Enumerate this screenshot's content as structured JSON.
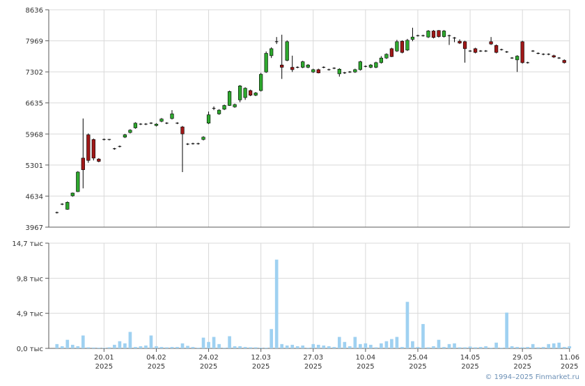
{
  "chart_data": [
    {
      "type": "candlestick",
      "y_ticks": [
        "8636",
        "7969",
        "7302",
        "6635",
        "5968",
        "5301",
        "4634",
        "3967"
      ],
      "ylim": [
        3967,
        8636
      ],
      "x_ticks": [
        {
          "date": "20.01",
          "year": "2025",
          "index": 9
        },
        {
          "date": "04.02",
          "year": "2025",
          "index": 19
        },
        {
          "date": "24.02",
          "year": "2025",
          "index": 29
        },
        {
          "date": "12.03",
          "year": "2025",
          "index": 39
        },
        {
          "date": "27.03",
          "year": "2025",
          "index": 49
        },
        {
          "date": "10.04",
          "year": "2025",
          "index": 59
        },
        {
          "date": "25.04",
          "year": "2025",
          "index": 69
        },
        {
          "date": "14.05",
          "year": "2025",
          "index": 79
        },
        {
          "date": "29.05",
          "year": "2025",
          "index": 89
        },
        {
          "date": "11.06",
          "year": "2025",
          "index": 98
        }
      ],
      "grid": true,
      "candles": [
        [
          4280,
          4280,
          4260,
          4300
        ],
        [
          4460,
          4460,
          4440,
          4480
        ],
        [
          4350,
          4500,
          4340,
          4520
        ],
        [
          4640,
          4700,
          4620,
          4710
        ],
        [
          4730,
          5150,
          4720,
          5170
        ],
        [
          5450,
          5200,
          4800,
          6300
        ],
        [
          5950,
          5400,
          5350,
          5980
        ],
        [
          5850,
          5450,
          5400,
          5870
        ],
        [
          5430,
          5380,
          5360,
          5450
        ],
        [
          5850,
          5850,
          5830,
          5870
        ],
        [
          5850,
          5850,
          5830,
          5860
        ],
        [
          5650,
          5650,
          5630,
          5670
        ],
        [
          5700,
          5700,
          5680,
          5720
        ],
        [
          5900,
          5950,
          5880,
          5970
        ],
        [
          6000,
          6050,
          5980,
          6070
        ],
        [
          6100,
          6200,
          6080,
          6220
        ],
        [
          6180,
          6180,
          6160,
          6200
        ],
        [
          6180,
          6180,
          6160,
          6200
        ],
        [
          6200,
          6200,
          6180,
          6220
        ],
        [
          6150,
          6180,
          6130,
          6200
        ],
        [
          6240,
          6290,
          6220,
          6310
        ],
        [
          6200,
          6200,
          6180,
          6220
        ],
        [
          6300,
          6400,
          6280,
          6480
        ],
        [
          6200,
          6200,
          6180,
          6220
        ],
        [
          6120,
          5970,
          5150,
          6140
        ],
        [
          5750,
          5750,
          5730,
          5770
        ],
        [
          5760,
          5760,
          5740,
          5780
        ],
        [
          5760,
          5760,
          5740,
          5780
        ],
        [
          5850,
          5900,
          5830,
          5920
        ],
        [
          6200,
          6380,
          6180,
          6450
        ],
        [
          6520,
          6520,
          6480,
          6560
        ],
        [
          6400,
          6480,
          6380,
          6500
        ],
        [
          6500,
          6580,
          6480,
          6600
        ],
        [
          6580,
          6880,
          6570,
          6900
        ],
        [
          6550,
          6600,
          6530,
          6620
        ],
        [
          6700,
          7000,
          6650,
          7020
        ],
        [
          6750,
          6950,
          6700,
          6970
        ],
        [
          6900,
          6800,
          6780,
          6920
        ],
        [
          6800,
          6850,
          6780,
          6870
        ],
        [
          6900,
          7250,
          6880,
          7280
        ],
        [
          7300,
          7700,
          7280,
          7740
        ],
        [
          7650,
          7800,
          7600,
          7830
        ],
        [
          7950,
          7950,
          7900,
          8050
        ],
        [
          7450,
          7400,
          7150,
          8100
        ],
        [
          7550,
          7950,
          7530,
          7980
        ],
        [
          7400,
          7350,
          7300,
          7650
        ],
        [
          7400,
          7400,
          7380,
          7420
        ],
        [
          7400,
          7520,
          7380,
          7540
        ],
        [
          7400,
          7450,
          7380,
          7470
        ],
        [
          7300,
          7350,
          7280,
          7370
        ],
        [
          7350,
          7280,
          7270,
          7370
        ],
        [
          7400,
          7400,
          7380,
          7420
        ],
        [
          7350,
          7350,
          7330,
          7370
        ],
        [
          7380,
          7380,
          7360,
          7400
        ],
        [
          7260,
          7360,
          7200,
          7380
        ],
        [
          7280,
          7280,
          7260,
          7300
        ],
        [
          7300,
          7300,
          7280,
          7320
        ],
        [
          7300,
          7350,
          7280,
          7370
        ],
        [
          7350,
          7520,
          7330,
          7540
        ],
        [
          7420,
          7420,
          7400,
          7440
        ],
        [
          7400,
          7450,
          7380,
          7470
        ],
        [
          7400,
          7500,
          7380,
          7520
        ],
        [
          7500,
          7600,
          7480,
          7640
        ],
        [
          7600,
          7680,
          7580,
          7700
        ],
        [
          7800,
          7630,
          7620,
          7820
        ],
        [
          7750,
          7950,
          7730,
          7990
        ],
        [
          7960,
          7720,
          7700,
          7980
        ],
        [
          7770,
          7980,
          7750,
          8010
        ],
        [
          8000,
          8050,
          7960,
          8250
        ],
        [
          8080,
          8080,
          8060,
          8100
        ],
        [
          8080,
          8080,
          8060,
          8100
        ],
        [
          8050,
          8180,
          8030,
          8200
        ],
        [
          8180,
          8040,
          8020,
          8200
        ],
        [
          8190,
          8060,
          8040,
          8200
        ],
        [
          8060,
          8180,
          8040,
          8200
        ],
        [
          8080,
          8080,
          7880,
          8100
        ],
        [
          8030,
          8030,
          7940,
          8050
        ],
        [
          7960,
          7920,
          7900,
          8000
        ],
        [
          7950,
          7800,
          7500,
          7970
        ],
        [
          7750,
          7750,
          7730,
          7770
        ],
        [
          7800,
          7720,
          7700,
          7820
        ],
        [
          7750,
          7750,
          7730,
          7770
        ],
        [
          7750,
          7750,
          7730,
          7770
        ],
        [
          7950,
          7900,
          7880,
          8050
        ],
        [
          7870,
          7720,
          7700,
          7890
        ],
        [
          7780,
          7780,
          7760,
          7800
        ],
        [
          7730,
          7730,
          7710,
          7750
        ],
        [
          7600,
          7600,
          7580,
          7620
        ],
        [
          7560,
          7640,
          7300,
          7660
        ],
        [
          7950,
          7500,
          7480,
          7970
        ],
        [
          7500,
          7500,
          7480,
          7520
        ],
        [
          7750,
          7750,
          7730,
          7770
        ],
        [
          7700,
          7700,
          7680,
          7720
        ],
        [
          7680,
          7680,
          7660,
          7700
        ],
        [
          7680,
          7680,
          7660,
          7700
        ],
        [
          7650,
          7620,
          7600,
          7670
        ],
        [
          7600,
          7600,
          7580,
          7620
        ],
        [
          7550,
          7500,
          7480,
          7570
        ]
      ]
    },
    {
      "type": "bar",
      "y_ticks": [
        "14,7 тыс",
        "9,8 тыс",
        "4,9 тыс",
        "0,0 тыс"
      ],
      "ylim": [
        0,
        14700
      ],
      "values": [
        600,
        300,
        1200,
        500,
        300,
        1800,
        150,
        120,
        100,
        80,
        150,
        500,
        1000,
        700,
        2300,
        200,
        300,
        400,
        1800,
        300,
        200,
        150,
        200,
        200,
        700,
        350,
        200,
        100,
        1500,
        900,
        1600,
        600,
        100,
        1700,
        300,
        300,
        200,
        150,
        150,
        100,
        100,
        2700,
        12400,
        600,
        400,
        500,
        300,
        400,
        100,
        600,
        500,
        400,
        300,
        200,
        1600,
        900,
        300,
        1600,
        600,
        700,
        500,
        150,
        700,
        1000,
        1300,
        1600,
        200,
        6500,
        1000,
        200,
        3400,
        150,
        300,
        1200,
        200,
        600,
        700,
        150,
        150,
        250,
        150,
        200,
        300,
        100,
        800,
        100,
        5000,
        300,
        200,
        150,
        200,
        600,
        150,
        200,
        600,
        700,
        800,
        200,
        300
      ]
    }
  ],
  "footer": {
    "copyright": "© 1994–2025 Finmarket.ru"
  },
  "colors": {
    "up": "#2ea82e",
    "down": "#a01818",
    "flat": "#000000",
    "volume": "#9fd1f1",
    "grid": "#d9d9d9",
    "axis": "#5a5a5a"
  }
}
